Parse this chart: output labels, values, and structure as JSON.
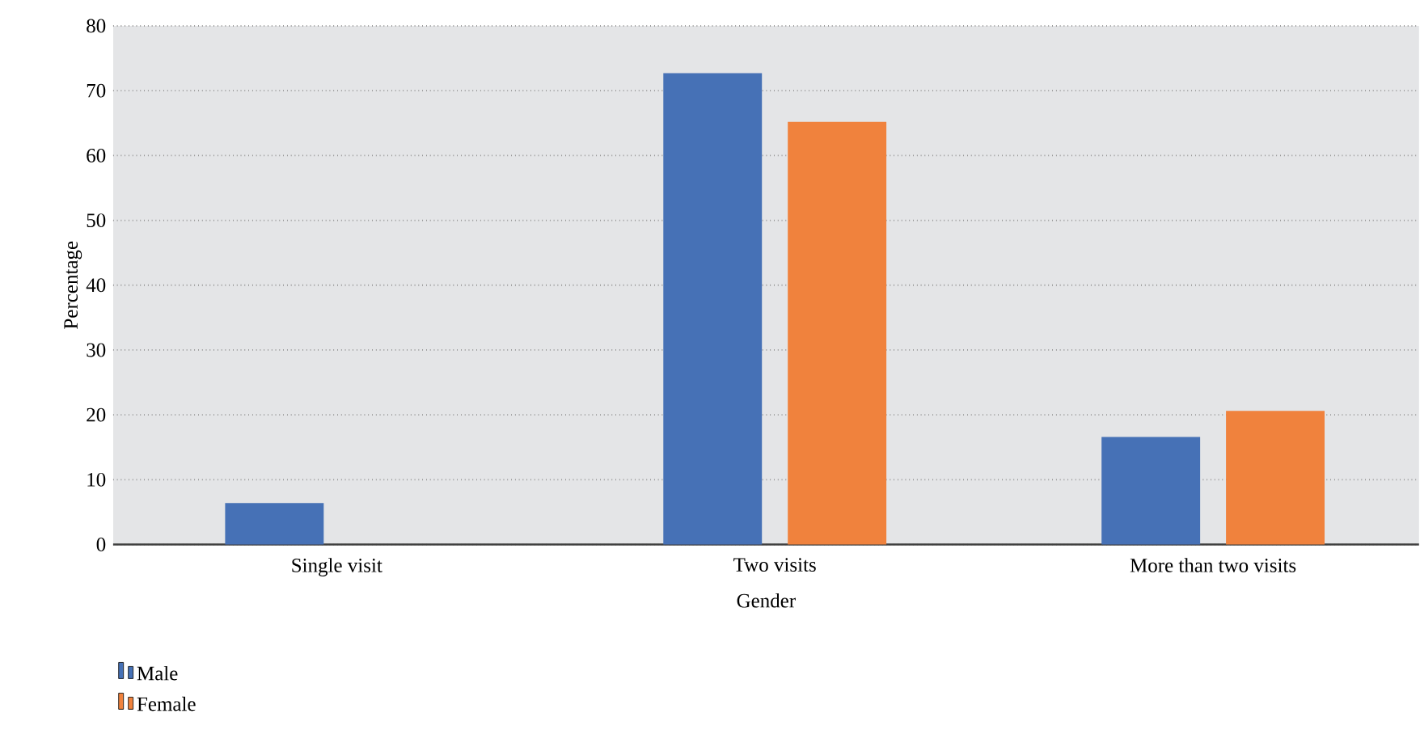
{
  "chart_data": {
    "type": "bar",
    "xlabel": "Gender",
    "ylabel": "Percentage",
    "categories": [
      "Single visit",
      "Two visits",
      "More than two visits"
    ],
    "series": [
      {
        "name": "Male",
        "color": "#4671b6",
        "values": [
          6.4,
          72.7,
          16.6
        ]
      },
      {
        "name": "Female",
        "color": "#f0823d",
        "values": [
          0,
          65.2,
          20.6
        ]
      }
    ],
    "ylim": [
      0,
      80
    ],
    "yticks": [
      0,
      10,
      20,
      30,
      40,
      50,
      60,
      70,
      80
    ],
    "grid": "y",
    "legend": "bottom left"
  }
}
